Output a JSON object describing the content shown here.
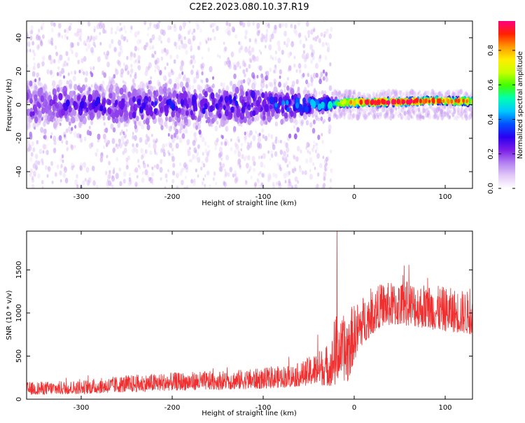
{
  "title": "C2E2.2023.080.10.37.R19",
  "chart_data": [
    {
      "type": "heatmap",
      "xlabel": "Height of straight line (km)",
      "ylabel": "Frequency (Hz)",
      "xlim": [
        -360,
        130
      ],
      "ylim": [
        -50,
        50
      ],
      "xticks": [
        -300,
        -200,
        -100,
        0,
        100
      ],
      "yticks": [
        -40,
        -20,
        0,
        20,
        40
      ],
      "colorbar": {
        "label": "Normalized spectral amplitude",
        "range": [
          0,
          0.97
        ],
        "ticks": [
          "0.0",
          "0.2",
          "0.4",
          "0.6",
          "0.8"
        ],
        "colormap": [
          "#ffffff",
          "#e3c9f7",
          "#b27ff0",
          "#7a1ce8",
          "#2a00f0",
          "#0050ff",
          "#00c8ff",
          "#00ffb0",
          "#40ff00",
          "#c8ff00",
          "#ffee00",
          "#ff9900",
          "#ff2000",
          "#ff0080"
        ]
      },
      "band_trend": [
        {
          "x": -360,
          "center": 0.0,
          "halfwidth": 16,
          "peak": 0.22
        },
        {
          "x": -100,
          "center": 0.0,
          "halfwidth": 13,
          "peak": 0.3
        },
        {
          "x": -50,
          "center": 0.0,
          "halfwidth": 8,
          "peak": 0.38
        },
        {
          "x": -25,
          "center": 0.5,
          "halfwidth": 4,
          "peak": 0.5
        },
        {
          "x": 0,
          "center": 1.5,
          "halfwidth": 2.5,
          "peak": 0.85
        },
        {
          "x": 40,
          "center": 1.5,
          "halfwidth": 2.2,
          "peak": 0.95
        },
        {
          "x": 90,
          "center": 2.5,
          "halfwidth": 2.0,
          "peak": 0.9
        },
        {
          "x": 130,
          "center": 2.0,
          "halfwidth": 2.5,
          "peak": 0.8
        }
      ],
      "scatter_extent_hz": {
        "x_before": -25,
        "before": 50,
        "after": 5
      }
    },
    {
      "type": "line",
      "xlabel": "Height of straight line (km)",
      "ylabel": "SNR (10 * v/v)",
      "xlim": [
        -360,
        130
      ],
      "ylim": [
        0,
        1950
      ],
      "xticks": [
        -300,
        -200,
        -100,
        0,
        100
      ],
      "yticks": [
        0,
        500,
        1000,
        1500
      ],
      "series_color": "#f03030",
      "envelope": {
        "x": [
          -360,
          -300,
          -250,
          -200,
          -150,
          -100,
          -60,
          -40,
          -25,
          -20,
          -15,
          -8,
          0,
          10,
          30,
          60,
          90,
          130
        ],
        "low": [
          50,
          60,
          80,
          100,
          110,
          120,
          150,
          170,
          150,
          150,
          300,
          150,
          450,
          650,
          850,
          850,
          800,
          750
        ],
        "high": [
          200,
          220,
          280,
          310,
          330,
          360,
          420,
          560,
          680,
          1000,
          900,
          1050,
          1100,
          1200,
          1350,
          1380,
          1320,
          1250
        ],
        "spikes": [
          {
            "x": -19,
            "y": 1950
          },
          {
            "x": -22,
            "y": 900
          },
          {
            "x": -40,
            "y": 750
          },
          {
            "x": 55,
            "y": 1550
          }
        ]
      }
    }
  ]
}
